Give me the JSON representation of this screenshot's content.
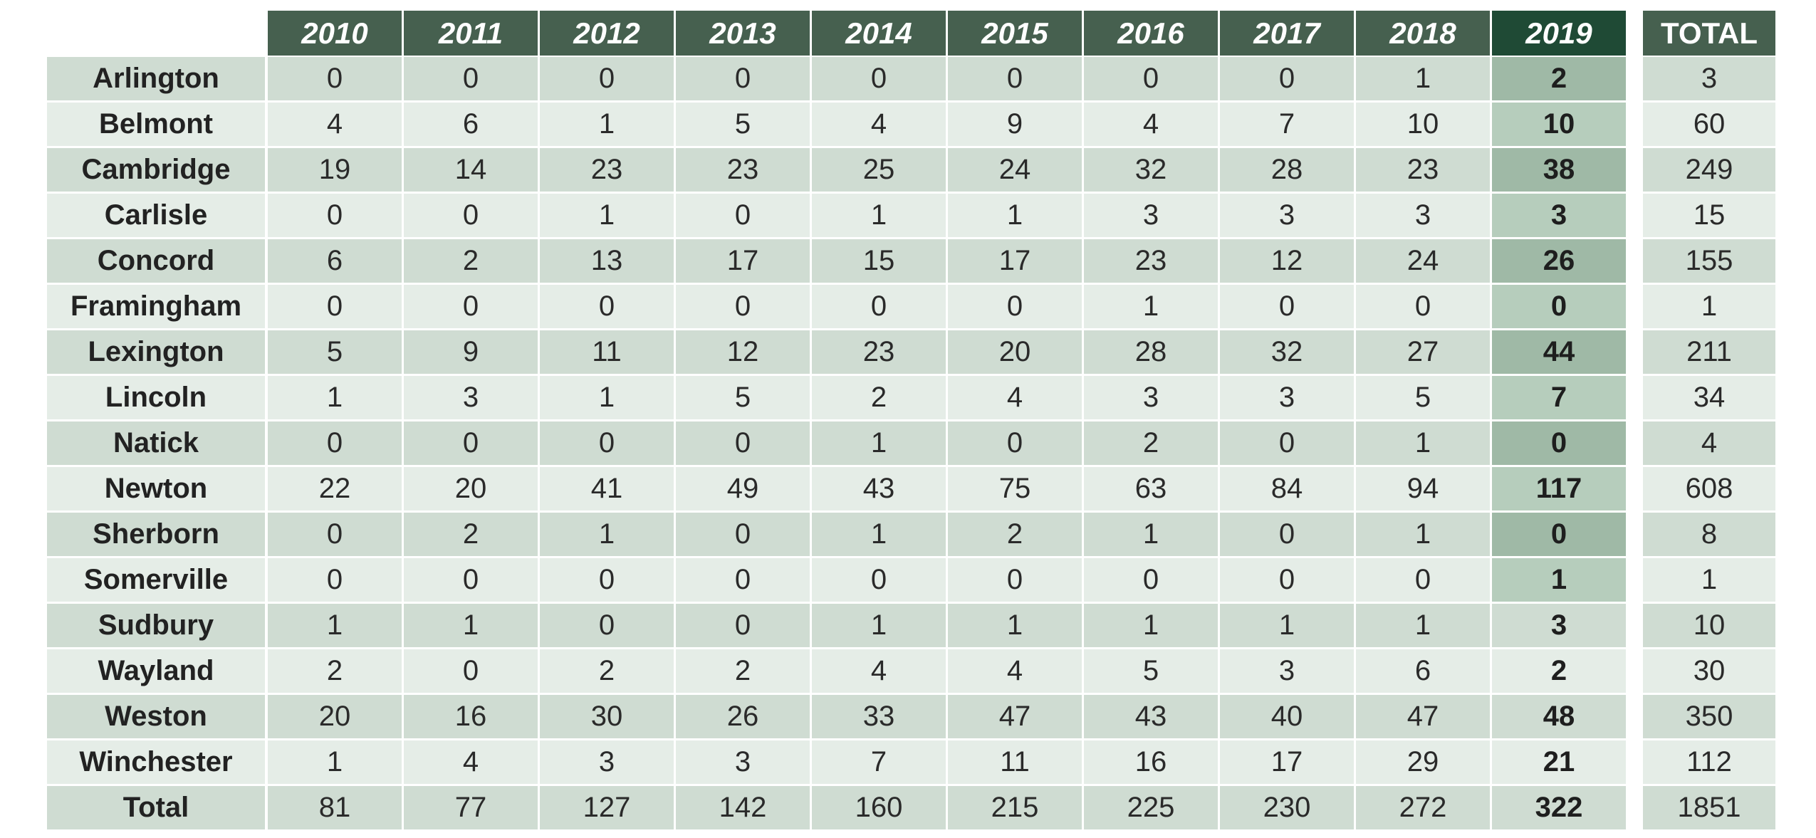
{
  "table": {
    "columns": [
      "2010",
      "2011",
      "2012",
      "2013",
      "2014",
      "2015",
      "2016",
      "2017",
      "2018",
      "2019"
    ],
    "total_header": "TOTAL",
    "rows": [
      {
        "label": "Arlington",
        "values": [
          "0",
          "0",
          "0",
          "0",
          "0",
          "0",
          "0",
          "0",
          "1",
          "2"
        ],
        "total": "3"
      },
      {
        "label": "Belmont",
        "values": [
          "4",
          "6",
          "1",
          "5",
          "4",
          "9",
          "4",
          "7",
          "10",
          "10"
        ],
        "total": "60"
      },
      {
        "label": "Cambridge",
        "values": [
          "19",
          "14",
          "23",
          "23",
          "25",
          "24",
          "32",
          "28",
          "23",
          "38"
        ],
        "total": "249"
      },
      {
        "label": "Carlisle",
        "values": [
          "0",
          "0",
          "1",
          "0",
          "1",
          "1",
          "3",
          "3",
          "3",
          "3"
        ],
        "total": "15"
      },
      {
        "label": "Concord",
        "values": [
          "6",
          "2",
          "13",
          "17",
          "15",
          "17",
          "23",
          "12",
          "24",
          "26"
        ],
        "total": "155"
      },
      {
        "label": "Framingham",
        "values": [
          "0",
          "0",
          "0",
          "0",
          "0",
          "0",
          "1",
          "0",
          "0",
          "0"
        ],
        "total": "1"
      },
      {
        "label": "Lexington",
        "values": [
          "5",
          "9",
          "11",
          "12",
          "23",
          "20",
          "28",
          "32",
          "27",
          "44"
        ],
        "total": "211"
      },
      {
        "label": "Lincoln",
        "values": [
          "1",
          "3",
          "1",
          "5",
          "2",
          "4",
          "3",
          "3",
          "5",
          "7"
        ],
        "total": "34"
      },
      {
        "label": "Natick",
        "values": [
          "0",
          "0",
          "0",
          "0",
          "1",
          "0",
          "2",
          "0",
          "1",
          "0"
        ],
        "total": "4"
      },
      {
        "label": "Newton",
        "values": [
          "22",
          "20",
          "41",
          "49",
          "43",
          "75",
          "63",
          "84",
          "94",
          "117"
        ],
        "total": "608"
      },
      {
        "label": "Sherborn",
        "values": [
          "0",
          "2",
          "1",
          "0",
          "1",
          "2",
          "1",
          "0",
          "1",
          "0"
        ],
        "total": "8"
      },
      {
        "label": "Somerville",
        "values": [
          "0",
          "0",
          "0",
          "0",
          "0",
          "0",
          "0",
          "0",
          "0",
          "1"
        ],
        "total": "1"
      },
      {
        "label": "Sudbury",
        "values": [
          "1",
          "1",
          "0",
          "0",
          "1",
          "1",
          "1",
          "1",
          "1",
          "3"
        ],
        "total": "10"
      },
      {
        "label": "Wayland",
        "values": [
          "2",
          "0",
          "2",
          "2",
          "4",
          "4",
          "5",
          "3",
          "6",
          "2"
        ],
        "total": "30"
      },
      {
        "label": "Weston",
        "values": [
          "20",
          "16",
          "30",
          "26",
          "33",
          "47",
          "43",
          "40",
          "47",
          "48"
        ],
        "total": "350"
      },
      {
        "label": "Winchester",
        "values": [
          "1",
          "4",
          "3",
          "3",
          "7",
          "11",
          "16",
          "17",
          "29",
          "21"
        ],
        "total": "112"
      },
      {
        "label": "Total",
        "values": [
          "81",
          "77",
          "127",
          "142",
          "160",
          "215",
          "225",
          "230",
          "272",
          "322"
        ],
        "total": "1851"
      }
    ],
    "highlight_rows_2019": 12,
    "colors": {
      "header": "#46604f",
      "header_highlight": "#1f4a35",
      "row_odd": "#cfdcd2",
      "row_even": "#e5ede7",
      "highlight_odd": "#9fb9a6",
      "highlight_even": "#b6cdbc"
    }
  }
}
